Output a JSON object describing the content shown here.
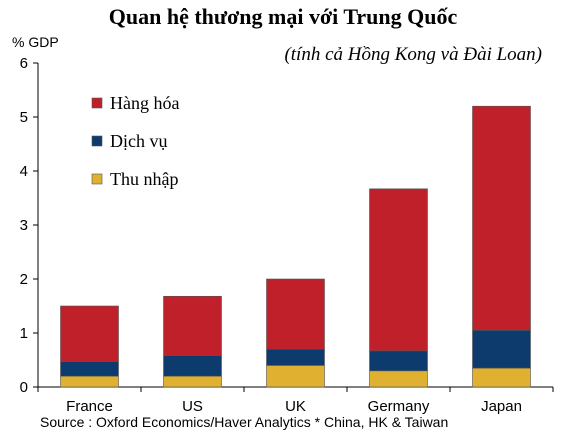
{
  "chart_data": {
    "type": "bar",
    "stacked": true,
    "title": "Quan hệ thương mại với Trung Quốc",
    "subtitle": "(tính cả Hồng Kong và Đài Loan)",
    "ylabel": "% GDP",
    "ylim": [
      0,
      6
    ],
    "yticks": [
      "0",
      "1",
      "2",
      "3",
      "4",
      "5",
      "6"
    ],
    "categories": [
      "France",
      "US",
      "UK",
      "Germany",
      "Japan"
    ],
    "series": [
      {
        "name": "Thu nhập",
        "color": "#e0b030",
        "values": [
          0.2,
          0.2,
          0.4,
          0.3,
          0.35
        ]
      },
      {
        "name": "Dịch vụ",
        "color": "#0d3b6e",
        "values": [
          0.27,
          0.38,
          0.3,
          0.37,
          0.7
        ]
      },
      {
        "name": "Hàng hóa",
        "color": "#c0202a",
        "values": [
          1.03,
          1.1,
          1.3,
          3.0,
          4.15
        ]
      }
    ],
    "legend_order": [
      "Hàng hóa",
      "Dịch vụ",
      "Thu nhập"
    ],
    "legend_position": "top-left",
    "grid": false,
    "source": "Source : Oxford Economics/Haver Analytics * China, HK & Taiwan"
  }
}
